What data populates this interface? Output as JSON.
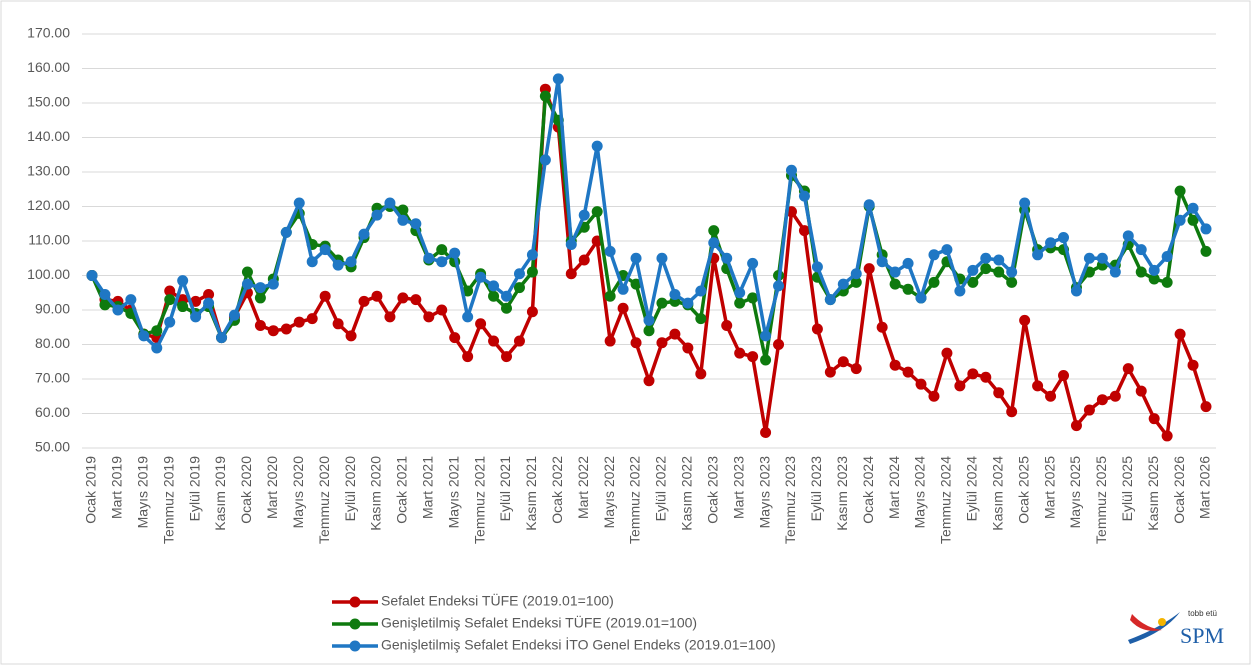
{
  "chart_data": {
    "type": "line",
    "categories": [
      "Ocak 2019",
      null,
      "Mart 2019",
      null,
      "Mayıs 2019",
      null,
      "Temmuz 2019",
      null,
      "Eylül 2019",
      null,
      "Kasım 2019",
      null,
      "Ocak 2020",
      null,
      "Mart 2020",
      null,
      "Mayıs 2020",
      null,
      "Temmuz 2020",
      null,
      "Eylül 2020",
      null,
      "Kasım 2020",
      null,
      "Ocak 2021",
      null,
      "Mart 2021",
      null,
      "Mayıs 2021",
      null,
      "Temmuz 2021",
      null,
      "Eylül 2021",
      null,
      "Kasım 2021",
      null,
      "Ocak 2022",
      null,
      "Mart 2022",
      null,
      "Mayıs 2022",
      null,
      "Temmuz 2022",
      null,
      "Eylül 2022",
      null,
      "Kasım 2022",
      null,
      "Ocak 2023",
      null,
      "Mart 2023",
      null,
      "Mayıs 2023",
      null,
      "Temmuz 2023",
      null,
      "Eylül 2023",
      null,
      "Kasım 2023",
      null,
      "Ocak 2024",
      null,
      "Mart 2024",
      null,
      "Mayıs 2024",
      null,
      "Temmuz 2024",
      null,
      "Eylül 2024",
      null,
      "Kasım 2024",
      null,
      "Ocak 2025",
      null,
      "Mart 2025",
      null,
      "Mayıs 2025",
      null,
      "Temmuz 2025",
      null,
      "Eylül 2025",
      null,
      "Kasım 2025",
      null,
      "Ocak 2026",
      null,
      "Mart 2026"
    ],
    "series": [
      {
        "name": "Sefalet Endeksi TÜFE (2019.01=100)",
        "color": "#c00000",
        "values": [
          100,
          93,
          92.5,
          90,
          83,
          82,
          95.5,
          93,
          92.5,
          94.5,
          82,
          88,
          95,
          85.5,
          84,
          84.5,
          86.5,
          87.5,
          94,
          86,
          82.5,
          92.5,
          94,
          88,
          93.5,
          93,
          88,
          90,
          82,
          76.5,
          86,
          81,
          76.5,
          81,
          89.5,
          154,
          143,
          100.5,
          104.5,
          110,
          81,
          90.5,
          80.5,
          69.5,
          80.5,
          83,
          79,
          71.5,
          105,
          85.5,
          77.5,
          76.5,
          54.5,
          80,
          118.5,
          113,
          84.5,
          72,
          75,
          73,
          102,
          85,
          74,
          72,
          68.5,
          65,
          77.5,
          68,
          71.5,
          70.5,
          66,
          60.5,
          87,
          68,
          65,
          71,
          56.5,
          61,
          64,
          65,
          73,
          66.5,
          58.5,
          53.5,
          83,
          74,
          62
        ]
      },
      {
        "name": "Genişletilmiş Sefalet Endeksi TÜFE (2019.01=100)",
        "color": "#0e7a0e",
        "values": [
          100,
          91.5,
          91,
          89,
          83,
          84,
          93,
          91,
          89,
          91,
          82,
          87,
          101,
          93.5,
          99,
          112.5,
          118,
          109,
          108.5,
          104.5,
          102.5,
          111,
          119.5,
          120,
          119,
          113,
          104.5,
          107.5,
          104,
          95.5,
          100.5,
          94,
          90.5,
          96.5,
          101,
          152,
          145,
          110,
          114,
          118.5,
          94,
          100,
          97.5,
          84,
          92,
          92.5,
          91.5,
          87.5,
          113,
          102,
          92,
          93.5,
          75.5,
          100,
          129,
          124.5,
          99.5,
          93,
          95.5,
          98,
          120,
          106,
          97.5,
          96,
          93.5,
          98,
          104,
          99,
          98,
          102,
          101,
          98,
          119,
          107.5,
          108,
          107.5,
          96.5,
          101,
          103,
          103,
          109,
          101,
          99,
          98,
          124.5,
          116,
          107
        ]
      },
      {
        "name": "Genişletilmiş Sefalet Endeksi İTO Genel Endeks (2019.01=100)",
        "color": "#1f77c4",
        "values": [
          100,
          94.5,
          90,
          93,
          82.5,
          79,
          86.5,
          98.5,
          88,
          92,
          82,
          88.5,
          97.5,
          96.5,
          97.5,
          112.5,
          121,
          104,
          107.5,
          103,
          104,
          112,
          117.5,
          121,
          116,
          115,
          105,
          104,
          106.5,
          88,
          99.5,
          97,
          94,
          100.5,
          106,
          133.5,
          157,
          109,
          117.5,
          137.5,
          107,
          96,
          105,
          87,
          105,
          94.5,
          92,
          95.5,
          109.5,
          105,
          95,
          103.5,
          82.5,
          97,
          130.5,
          123,
          102.5,
          93,
          97.5,
          100.5,
          120.5,
          104,
          101,
          103.5,
          93.5,
          106,
          107.5,
          95.5,
          101.5,
          105,
          104.5,
          101,
          121,
          106,
          109.5,
          111,
          95.5,
          105,
          105,
          101,
          111.5,
          107.5,
          101.5,
          105.5,
          116,
          119.5,
          113.5
        ]
      }
    ],
    "ylim": [
      50,
      170
    ],
    "yticks": [
      {
        "value": 50,
        "label": "50.00"
      },
      {
        "value": 60,
        "label": "60.00"
      },
      {
        "value": 70,
        "label": "70.00"
      },
      {
        "value": 80,
        "label": "80.00"
      },
      {
        "value": 90,
        "label": "90.00"
      },
      {
        "value": 100,
        "label": "100.00"
      },
      {
        "value": 110,
        "label": "110.00"
      },
      {
        "value": 120,
        "label": "120.00"
      },
      {
        "value": 130,
        "label": "130.00"
      },
      {
        "value": 140,
        "label": "140.00"
      },
      {
        "value": 150,
        "label": "150.00"
      },
      {
        "value": 160,
        "label": "160.00"
      },
      {
        "value": 170,
        "label": "170.00"
      }
    ],
    "grid": true,
    "legend": "bottom"
  },
  "logo": {
    "small": "tobb etü",
    "main": "SPM"
  }
}
